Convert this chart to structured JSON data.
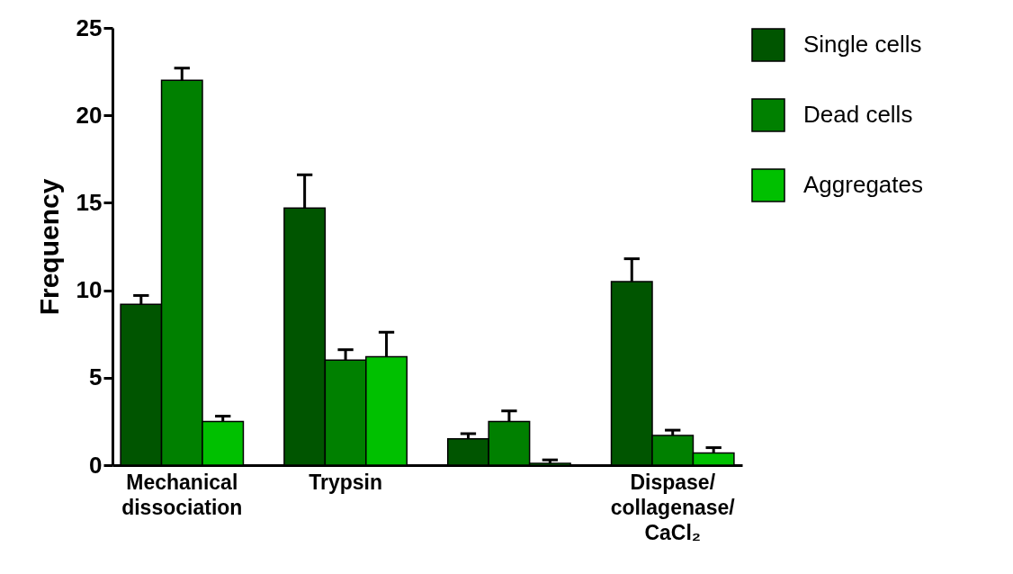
{
  "chart_data": {
    "type": "bar",
    "ylabel": "Frequency",
    "categories": [
      "Mechanical dissociation",
      "Trypsin",
      null,
      "Dispase/collagenase/CaCl₂"
    ],
    "series": [
      {
        "name": "Single cells",
        "color": "#005500",
        "values": [
          9.2,
          14.7,
          1.5,
          10.5
        ],
        "errors": [
          0.5,
          1.9,
          0.3,
          1.3
        ]
      },
      {
        "name": "Dead cells",
        "color": "#008000",
        "values": [
          22.0,
          6.0,
          2.5,
          1.7
        ],
        "errors": [
          0.7,
          0.6,
          0.6,
          0.3
        ]
      },
      {
        "name": "Aggregates",
        "color": "#00c000",
        "values": [
          2.5,
          6.2,
          0.1,
          0.7
        ],
        "errors": [
          0.3,
          1.4,
          0.2,
          0.3
        ]
      }
    ],
    "ylim": [
      0,
      25
    ],
    "yticks": [
      0,
      5,
      10,
      15,
      20,
      25
    ],
    "grid": false,
    "legend": "top right"
  }
}
